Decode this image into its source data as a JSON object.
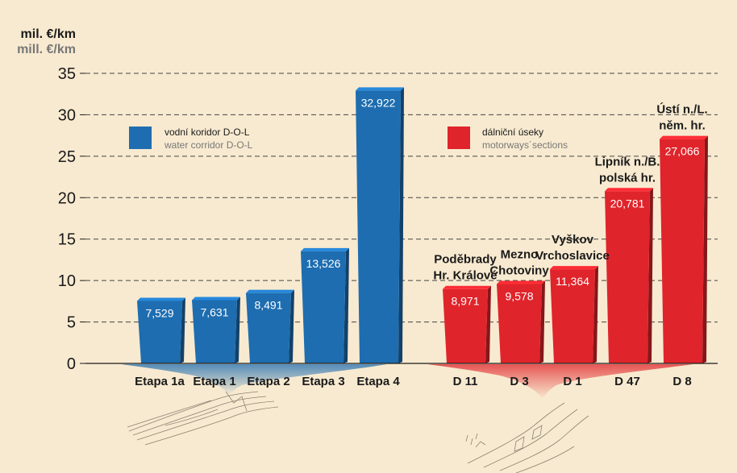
{
  "chart_data": {
    "type": "bar",
    "ylabel": "mil. €/km",
    "ylabel_en": "mill. €/km",
    "ylim": [
      0,
      35
    ],
    "yticks": [
      0,
      5,
      10,
      15,
      20,
      25,
      30,
      35
    ],
    "grid": "horizontal dashed",
    "colors": {
      "water": "#1e6db0",
      "motorway": "#e0242b"
    },
    "legend": [
      {
        "label": "vodní koridor D-O-L",
        "label_en": "water corridor D-O-L",
        "color": "#1e6db0"
      },
      {
        "label": "dálniční úseky",
        "label_en": "motorways´sections",
        "color": "#e0242b"
      }
    ],
    "groups": [
      {
        "name": "water",
        "color": "#1e6db0",
        "bars": [
          {
            "category": "Etapa 1a",
            "value": 7.529,
            "label": "7,529",
            "top_label": []
          },
          {
            "category": "Etapa 1",
            "value": 7.631,
            "label": "7,631",
            "top_label": []
          },
          {
            "category": "Etapa 2",
            "value": 8.491,
            "label": "8,491",
            "top_label": []
          },
          {
            "category": "Etapa 3",
            "value": 13.526,
            "label": "13,526",
            "top_label": []
          },
          {
            "category": "Etapa 4",
            "value": 32.922,
            "label": "32,922",
            "top_label": []
          }
        ]
      },
      {
        "name": "motorway",
        "color": "#e0242b",
        "bars": [
          {
            "category": "D 11",
            "value": 8.971,
            "label": "8,971",
            "top_label": [
              "Poděbrady",
              "Hr. Králové"
            ]
          },
          {
            "category": "D 3",
            "value": 9.578,
            "label": "9,578",
            "top_label": [
              "Mezno",
              "Chotoviny"
            ]
          },
          {
            "category": "D 1",
            "value": 11.364,
            "label": "11,364",
            "top_label": [
              "Vyškov",
              "Vrchoslavice"
            ]
          },
          {
            "category": "D 47",
            "value": 20.781,
            "label": "20,781",
            "top_label": [
              "Lipník n./B.",
              "polská hr."
            ]
          },
          {
            "category": "D 8",
            "value": 27.066,
            "label": "27,066",
            "top_label": [
              "Ústí n./L.",
              "něm. hr."
            ]
          }
        ]
      }
    ]
  }
}
